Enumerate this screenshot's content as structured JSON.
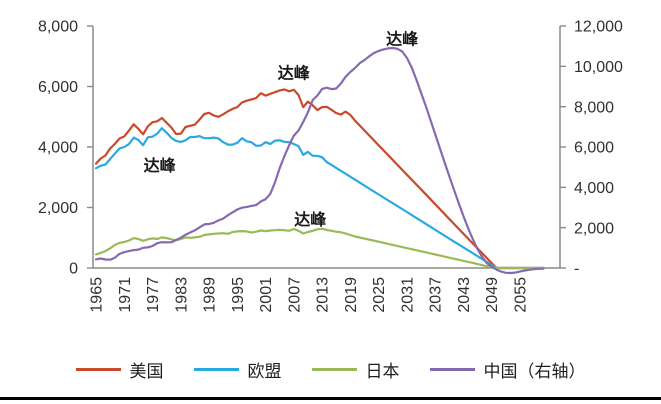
{
  "colors": {
    "background": "#ffffff",
    "axis_line": "#8a8a8a",
    "tick_text": "#303030",
    "divider": "#000000"
  },
  "chart_data": {
    "type": "line",
    "title": "",
    "xlabel": "",
    "ylabel_left": "",
    "ylabel_right": "",
    "grid": false,
    "legend_position": "bottom",
    "x_axis": {
      "tick_labels": [
        "1965",
        "1971",
        "1977",
        "1983",
        "1989",
        "1995",
        "2001",
        "2007",
        "2013",
        "2019",
        "2025",
        "2031",
        "2037",
        "2043",
        "2049",
        "2055"
      ],
      "range_years": [
        1965,
        2060
      ]
    },
    "left_axis": {
      "tick_labels": [
        "0",
        "2,000",
        "4,000",
        "6,000",
        "8,000"
      ],
      "tick_values": [
        0,
        2000,
        4000,
        6000,
        8000
      ],
      "min": 0,
      "max": 8000
    },
    "right_axis": {
      "tick_labels": [
        "-",
        "2,000",
        "4,000",
        "6,000",
        "8,000",
        "10,000",
        "12,000"
      ],
      "tick_values": [
        0,
        2000,
        4000,
        6000,
        8000,
        10000,
        12000
      ],
      "min": 0,
      "max": 12000
    },
    "series": [
      {
        "key": "usa",
        "name": "美国",
        "color": "#c94a2a",
        "axis": "left",
        "points": [
          [
            1965,
            3450
          ],
          [
            1966,
            3620
          ],
          [
            1967,
            3720
          ],
          [
            1968,
            3950
          ],
          [
            1969,
            4100
          ],
          [
            1970,
            4280
          ],
          [
            1971,
            4350
          ],
          [
            1972,
            4550
          ],
          [
            1973,
            4750
          ],
          [
            1974,
            4600
          ],
          [
            1975,
            4420
          ],
          [
            1976,
            4680
          ],
          [
            1977,
            4820
          ],
          [
            1978,
            4850
          ],
          [
            1979,
            4960
          ],
          [
            1980,
            4800
          ],
          [
            1981,
            4640
          ],
          [
            1982,
            4430
          ],
          [
            1983,
            4440
          ],
          [
            1984,
            4660
          ],
          [
            1985,
            4700
          ],
          [
            1986,
            4740
          ],
          [
            1987,
            4910
          ],
          [
            1988,
            5090
          ],
          [
            1989,
            5130
          ],
          [
            1990,
            5040
          ],
          [
            1991,
            5000
          ],
          [
            1992,
            5080
          ],
          [
            1993,
            5180
          ],
          [
            1994,
            5260
          ],
          [
            1995,
            5320
          ],
          [
            1996,
            5470
          ],
          [
            1997,
            5530
          ],
          [
            1998,
            5570
          ],
          [
            1999,
            5620
          ],
          [
            2000,
            5780
          ],
          [
            2001,
            5700
          ],
          [
            2002,
            5760
          ],
          [
            2003,
            5810
          ],
          [
            2004,
            5870
          ],
          [
            2005,
            5900
          ],
          [
            2006,
            5840
          ],
          [
            2007,
            5890
          ],
          [
            2008,
            5720
          ],
          [
            2009,
            5320
          ],
          [
            2010,
            5500
          ],
          [
            2011,
            5380
          ],
          [
            2012,
            5220
          ],
          [
            2013,
            5320
          ],
          [
            2014,
            5330
          ],
          [
            2015,
            5230
          ],
          [
            2016,
            5120
          ],
          [
            2017,
            5070
          ],
          [
            2018,
            5170
          ],
          [
            2019,
            5060
          ],
          [
            2020,
            4870
          ],
          [
            2025,
            4060
          ],
          [
            2030,
            3250
          ],
          [
            2035,
            2440
          ],
          [
            2040,
            1620
          ],
          [
            2045,
            810
          ],
          [
            2050,
            0
          ],
          [
            2055,
            0
          ],
          [
            2060,
            0
          ]
        ]
      },
      {
        "key": "eu",
        "name": "欧盟",
        "color": "#29a9e1",
        "axis": "left",
        "points": [
          [
            1965,
            3300
          ],
          [
            1966,
            3380
          ],
          [
            1967,
            3420
          ],
          [
            1968,
            3600
          ],
          [
            1969,
            3780
          ],
          [
            1970,
            3950
          ],
          [
            1971,
            4000
          ],
          [
            1972,
            4100
          ],
          [
            1973,
            4310
          ],
          [
            1974,
            4230
          ],
          [
            1975,
            4060
          ],
          [
            1976,
            4320
          ],
          [
            1977,
            4340
          ],
          [
            1978,
            4440
          ],
          [
            1979,
            4620
          ],
          [
            1980,
            4470
          ],
          [
            1981,
            4300
          ],
          [
            1982,
            4200
          ],
          [
            1983,
            4170
          ],
          [
            1984,
            4220
          ],
          [
            1985,
            4330
          ],
          [
            1986,
            4330
          ],
          [
            1987,
            4360
          ],
          [
            1988,
            4290
          ],
          [
            1989,
            4290
          ],
          [
            1990,
            4310
          ],
          [
            1991,
            4280
          ],
          [
            1992,
            4160
          ],
          [
            1993,
            4080
          ],
          [
            1994,
            4080
          ],
          [
            1995,
            4140
          ],
          [
            1996,
            4290
          ],
          [
            1997,
            4190
          ],
          [
            1998,
            4160
          ],
          [
            1999,
            4040
          ],
          [
            2000,
            4050
          ],
          [
            2001,
            4160
          ],
          [
            2002,
            4100
          ],
          [
            2003,
            4210
          ],
          [
            2004,
            4220
          ],
          [
            2005,
            4170
          ],
          [
            2006,
            4160
          ],
          [
            2007,
            4100
          ],
          [
            2008,
            4030
          ],
          [
            2009,
            3740
          ],
          [
            2010,
            3840
          ],
          [
            2011,
            3710
          ],
          [
            2012,
            3710
          ],
          [
            2013,
            3660
          ],
          [
            2014,
            3500
          ],
          [
            2020,
            2920
          ],
          [
            2025,
            2430
          ],
          [
            2030,
            1950
          ],
          [
            2035,
            1460
          ],
          [
            2040,
            970
          ],
          [
            2045,
            490
          ],
          [
            2050,
            0
          ],
          [
            2055,
            0
          ],
          [
            2060,
            0
          ]
        ]
      },
      {
        "key": "japan",
        "name": "日本",
        "color": "#9ab957",
        "axis": "left",
        "points": [
          [
            1965,
            450
          ],
          [
            1966,
            500
          ],
          [
            1967,
            560
          ],
          [
            1968,
            650
          ],
          [
            1969,
            760
          ],
          [
            1970,
            830
          ],
          [
            1971,
            860
          ],
          [
            1972,
            910
          ],
          [
            1973,
            990
          ],
          [
            1974,
            960
          ],
          [
            1975,
            900
          ],
          [
            1976,
            950
          ],
          [
            1977,
            980
          ],
          [
            1978,
            960
          ],
          [
            1979,
            1010
          ],
          [
            1980,
            990
          ],
          [
            1981,
            950
          ],
          [
            1982,
            920
          ],
          [
            1983,
            960
          ],
          [
            1984,
            1010
          ],
          [
            1985,
            1000
          ],
          [
            1986,
            1010
          ],
          [
            1987,
            1030
          ],
          [
            1988,
            1090
          ],
          [
            1989,
            1110
          ],
          [
            1990,
            1130
          ],
          [
            1991,
            1140
          ],
          [
            1992,
            1150
          ],
          [
            1993,
            1130
          ],
          [
            1994,
            1190
          ],
          [
            1995,
            1210
          ],
          [
            1996,
            1220
          ],
          [
            1997,
            1210
          ],
          [
            1998,
            1170
          ],
          [
            1999,
            1200
          ],
          [
            2000,
            1240
          ],
          [
            2001,
            1220
          ],
          [
            2002,
            1240
          ],
          [
            2003,
            1250
          ],
          [
            2004,
            1260
          ],
          [
            2005,
            1250
          ],
          [
            2006,
            1230
          ],
          [
            2007,
            1290
          ],
          [
            2008,
            1230
          ],
          [
            2009,
            1140
          ],
          [
            2010,
            1190
          ],
          [
            2011,
            1230
          ],
          [
            2012,
            1280
          ],
          [
            2013,
            1300
          ],
          [
            2014,
            1260
          ],
          [
            2015,
            1230
          ],
          [
            2016,
            1200
          ],
          [
            2017,
            1180
          ],
          [
            2018,
            1140
          ],
          [
            2019,
            1090
          ],
          [
            2020,
            1040
          ],
          [
            2025,
            870
          ],
          [
            2030,
            690
          ],
          [
            2035,
            520
          ],
          [
            2040,
            340
          ],
          [
            2045,
            170
          ],
          [
            2049,
            20
          ],
          [
            2050,
            0
          ],
          [
            2055,
            0
          ],
          [
            2060,
            0
          ]
        ]
      },
      {
        "key": "china",
        "name": "中国（右轴）",
        "color": "#866ab0",
        "axis": "right",
        "points": [
          [
            1965,
            430
          ],
          [
            1966,
            470
          ],
          [
            1967,
            420
          ],
          [
            1968,
            410
          ],
          [
            1969,
            510
          ],
          [
            1970,
            700
          ],
          [
            1971,
            790
          ],
          [
            1972,
            840
          ],
          [
            1973,
            890
          ],
          [
            1974,
            910
          ],
          [
            1975,
            1000
          ],
          [
            1976,
            1020
          ],
          [
            1977,
            1090
          ],
          [
            1978,
            1230
          ],
          [
            1979,
            1280
          ],
          [
            1980,
            1270
          ],
          [
            1981,
            1280
          ],
          [
            1982,
            1390
          ],
          [
            1983,
            1500
          ],
          [
            1984,
            1650
          ],
          [
            1985,
            1760
          ],
          [
            1986,
            1870
          ],
          [
            1987,
            2020
          ],
          [
            1988,
            2160
          ],
          [
            1989,
            2180
          ],
          [
            1990,
            2240
          ],
          [
            1991,
            2360
          ],
          [
            1992,
            2450
          ],
          [
            1993,
            2620
          ],
          [
            1994,
            2760
          ],
          [
            1995,
            2900
          ],
          [
            1996,
            2990
          ],
          [
            1997,
            3030
          ],
          [
            1998,
            3080
          ],
          [
            1999,
            3120
          ],
          [
            2000,
            3300
          ],
          [
            2001,
            3410
          ],
          [
            2002,
            3680
          ],
          [
            2003,
            4250
          ],
          [
            2004,
            4950
          ],
          [
            2005,
            5550
          ],
          [
            2006,
            6080
          ],
          [
            2007,
            6560
          ],
          [
            2008,
            6820
          ],
          [
            2009,
            7240
          ],
          [
            2010,
            7720
          ],
          [
            2011,
            8330
          ],
          [
            2012,
            8550
          ],
          [
            2013,
            8880
          ],
          [
            2014,
            8940
          ],
          [
            2015,
            8870
          ],
          [
            2016,
            8900
          ],
          [
            2017,
            9150
          ],
          [
            2018,
            9480
          ],
          [
            2019,
            9720
          ],
          [
            2020,
            9920
          ],
          [
            2021,
            10160
          ],
          [
            2022,
            10310
          ],
          [
            2023,
            10500
          ],
          [
            2024,
            10660
          ],
          [
            2025,
            10760
          ],
          [
            2026,
            10840
          ],
          [
            2027,
            10890
          ],
          [
            2028,
            10910
          ],
          [
            2029,
            10870
          ],
          [
            2030,
            10740
          ],
          [
            2031,
            10420
          ],
          [
            2032,
            9950
          ],
          [
            2033,
            9350
          ],
          [
            2034,
            8700
          ],
          [
            2035,
            8050
          ],
          [
            2036,
            7350
          ],
          [
            2037,
            6650
          ],
          [
            2038,
            5950
          ],
          [
            2039,
            5250
          ],
          [
            2040,
            4550
          ],
          [
            2041,
            3880
          ],
          [
            2042,
            3220
          ],
          [
            2043,
            2580
          ],
          [
            2044,
            1980
          ],
          [
            2045,
            1430
          ],
          [
            2046,
            940
          ],
          [
            2047,
            540
          ],
          [
            2048,
            240
          ],
          [
            2049,
            60
          ],
          [
            2050,
            -80
          ],
          [
            2051,
            -180
          ],
          [
            2052,
            -240
          ],
          [
            2053,
            -250
          ],
          [
            2054,
            -230
          ],
          [
            2055,
            -180
          ],
          [
            2056,
            -130
          ],
          [
            2057,
            -90
          ],
          [
            2058,
            -60
          ],
          [
            2059,
            -40
          ],
          [
            2060,
            -30
          ]
        ]
      }
    ],
    "annotations": [
      {
        "text": "达峰",
        "series": "usa",
        "axis": "left",
        "year": 2007,
        "value": 6450
      },
      {
        "text": "达峰",
        "series": "eu",
        "axis": "left",
        "year": 1978.5,
        "value": 3400
      },
      {
        "text": "达峰",
        "series": "japan",
        "axis": "left",
        "year": 2010.5,
        "value": 1600
      },
      {
        "text": "达峰",
        "series": "china",
        "axis": "right",
        "year": 2030,
        "value": 11350
      }
    ],
    "legend_items": [
      "美国",
      "欧盟",
      "日本",
      "中国（右轴）"
    ]
  }
}
